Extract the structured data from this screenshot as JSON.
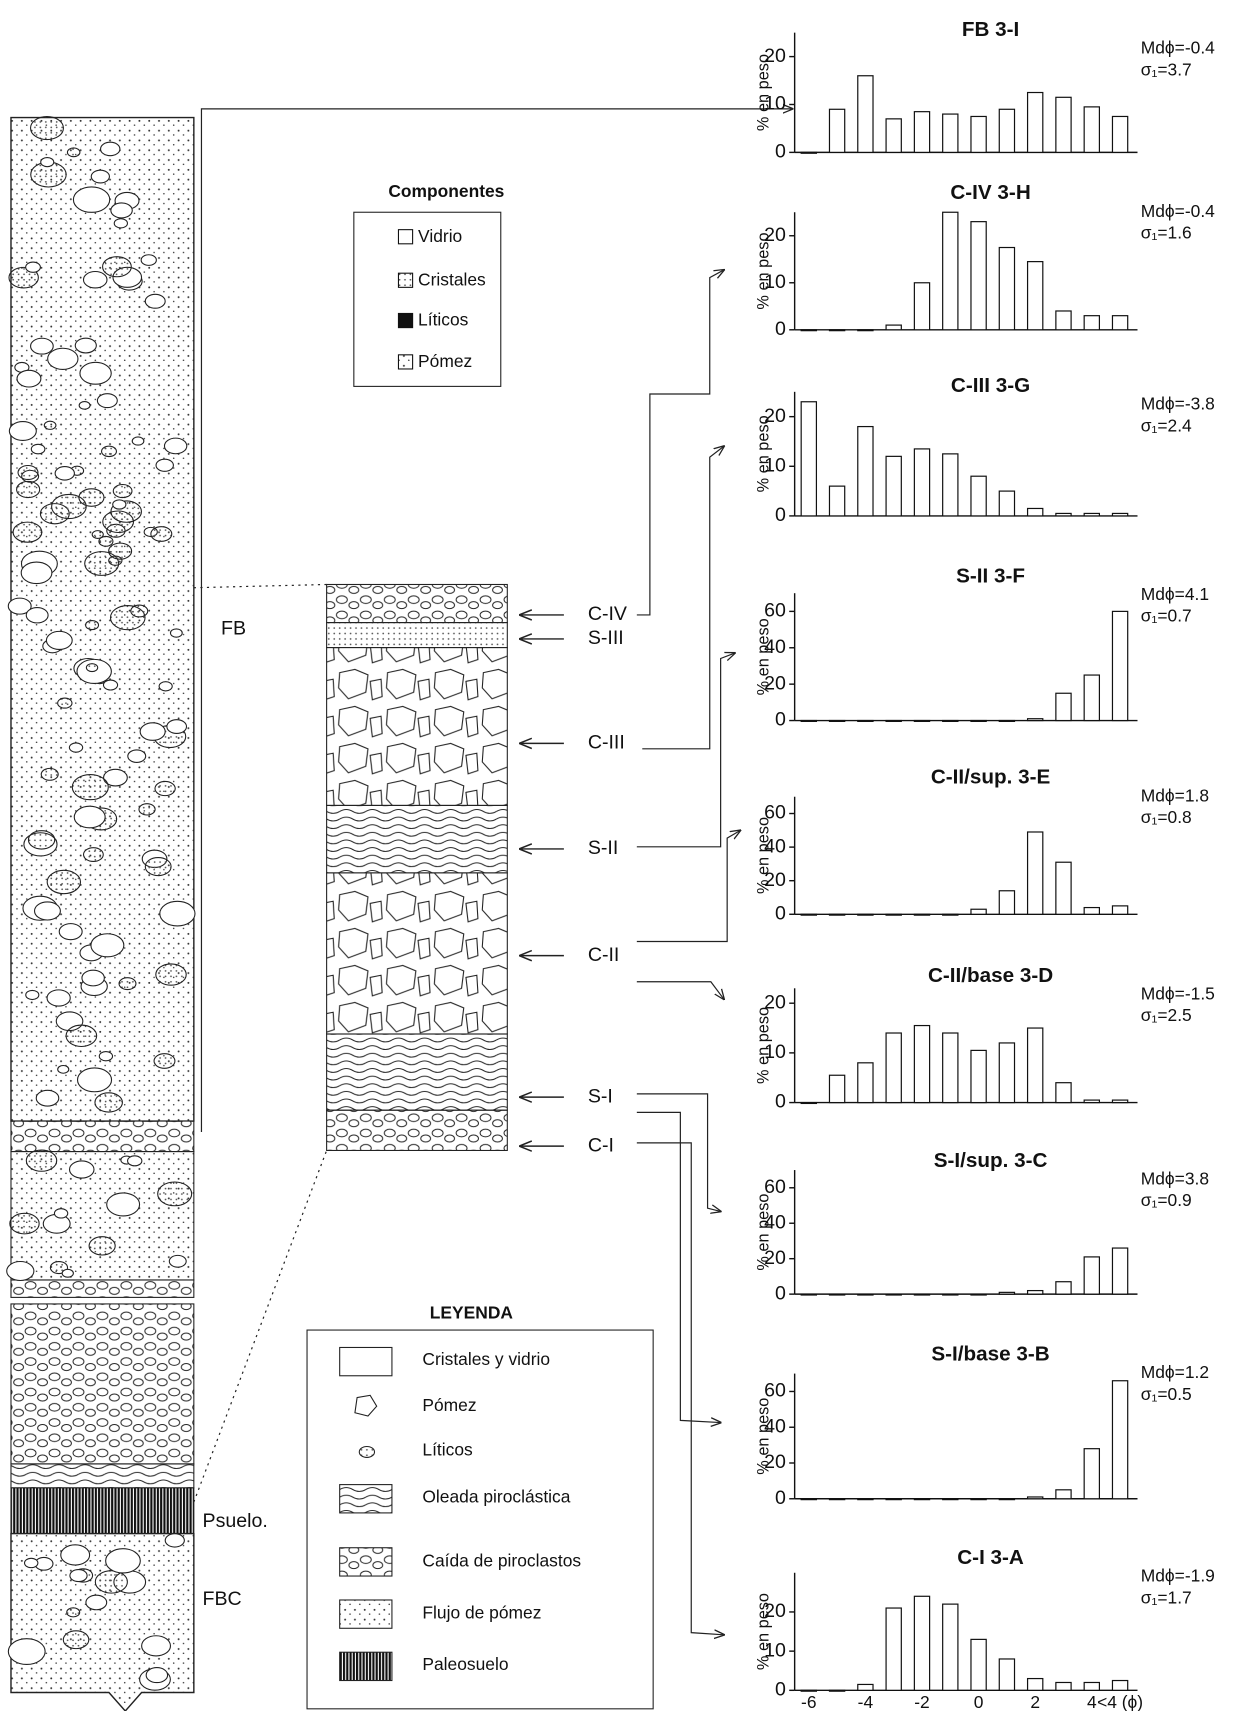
{
  "chart_data": [
    {
      "type": "bar",
      "title": "FB 3-I",
      "ylabel": "% en peso",
      "median": "Mdϕ=-0.4",
      "sorting": "σ₁=3.7",
      "values": [
        0,
        9,
        16,
        7,
        8.5,
        8,
        7.5,
        9,
        12.5,
        11.5,
        9.5,
        7.5
      ],
      "ylim": [
        0,
        25
      ],
      "yticks": [
        0,
        10,
        20
      ],
      "color": "#ffffff"
    },
    {
      "type": "bar",
      "title": "C-IV 3-H",
      "ylabel": "% en peso",
      "median": "Mdϕ=-0.4",
      "sorting": "σ₁=1.6",
      "values": [
        0,
        0,
        0,
        1,
        10,
        25,
        23,
        17.5,
        14.5,
        4,
        3,
        3
      ],
      "ylim": [
        0,
        25
      ],
      "yticks": [
        0,
        10,
        20
      ],
      "color": "#ffffff"
    },
    {
      "type": "bar",
      "title": "C-III 3-G",
      "ylabel": "% en peso",
      "median": "Mdϕ=-3.8",
      "sorting": "σ₁=2.4",
      "values": [
        23,
        6,
        18,
        12,
        13.5,
        12.5,
        8,
        5,
        1.5,
        0.5,
        0.5,
        0.5
      ],
      "ylim": [
        0,
        25
      ],
      "yticks": [
        0,
        10,
        20
      ],
      "color": "#ffffff"
    },
    {
      "type": "bar",
      "title": "S-II 3-F",
      "ylabel": "% en peso",
      "median": "Mdϕ=4.1",
      "sorting": "σ₁=0.7",
      "values": [
        0,
        0,
        0,
        0,
        0,
        0,
        0,
        0,
        1,
        15,
        25,
        60
      ],
      "ylim": [
        0,
        70
      ],
      "yticks": [
        0,
        20,
        40,
        60
      ],
      "color": "#ffffff"
    },
    {
      "type": "bar",
      "title": "C-II/sup. 3-E",
      "ylabel": "% en peso",
      "median": "Mdϕ=1.8",
      "sorting": "σ₁=0.8",
      "values": [
        0,
        0,
        0,
        0,
        0,
        0,
        3,
        14,
        49,
        31,
        4,
        5
      ],
      "ylim": [
        0,
        70
      ],
      "yticks": [
        0,
        20,
        40,
        60
      ],
      "color": "#ffffff"
    },
    {
      "type": "bar",
      "title": "C-II/base 3-D",
      "ylabel": "% en peso",
      "median": "Mdϕ=-1.5",
      "sorting": "σ₁=2.5",
      "values": [
        0,
        5.5,
        8,
        14,
        15.5,
        14,
        10.5,
        12,
        15,
        4,
        0.5,
        0.5
      ],
      "ylim": [
        0,
        23
      ],
      "yticks": [
        0,
        10,
        20
      ],
      "color": "#ffffff"
    },
    {
      "type": "bar",
      "title": "S-I/sup. 3-C",
      "ylabel": "% en peso",
      "median": "Mdϕ=3.8",
      "sorting": "σ₁=0.9",
      "values": [
        0,
        0,
        0,
        0,
        0,
        0,
        0,
        1,
        2,
        7,
        21,
        26
      ],
      "ylim": [
        0,
        70
      ],
      "yticks": [
        0,
        20,
        40,
        60
      ],
      "color": "#ffffff"
    },
    {
      "type": "bar",
      "title": "S-I/base 3-B",
      "ylabel": "% en peso",
      "median": "Mdϕ=1.2",
      "sorting": "σ₁=0.5",
      "values": [
        0,
        0,
        0,
        0,
        0,
        0,
        0,
        0,
        1,
        5,
        28,
        66
      ],
      "ylim": [
        0,
        70
      ],
      "yticks": [
        0,
        20,
        40,
        60
      ],
      "color": "#ffffff"
    },
    {
      "type": "bar",
      "title": "C-I 3-A",
      "ylabel": "% en peso",
      "median": "Mdϕ=-1.9",
      "sorting": "σ₁=1.7",
      "categories": [
        "-6",
        null,
        "-4",
        null,
        "-2",
        null,
        "0",
        null,
        "2",
        null,
        "4",
        "<4 (ϕ)"
      ],
      "values": [
        0,
        0,
        1.5,
        21,
        24,
        22,
        13,
        8,
        3,
        2,
        2,
        2.5
      ],
      "ylim": [
        0,
        30
      ],
      "yticks": [
        0,
        10,
        20
      ],
      "color": "#ffffff"
    }
  ],
  "column_labels": {
    "fb": "FB",
    "paleosol": "Psuelo.",
    "fbc": "FBC"
  },
  "section_labels": [
    "C-IV",
    "S-III",
    "C-III",
    "S-II",
    "C-II",
    "S-I",
    "C-I"
  ],
  "components": {
    "title": "Componentes",
    "items": [
      "Vidrio",
      "Cristales",
      "Líticos",
      "Pómez"
    ]
  },
  "legend": {
    "title": "LEYENDA",
    "items": [
      "Cristales y vidrio",
      "Pómez",
      "Líticos",
      "Oleada piroclástica",
      "Caída de piroclastos",
      "Flujo de pómez",
      "Paleosuelo"
    ]
  }
}
